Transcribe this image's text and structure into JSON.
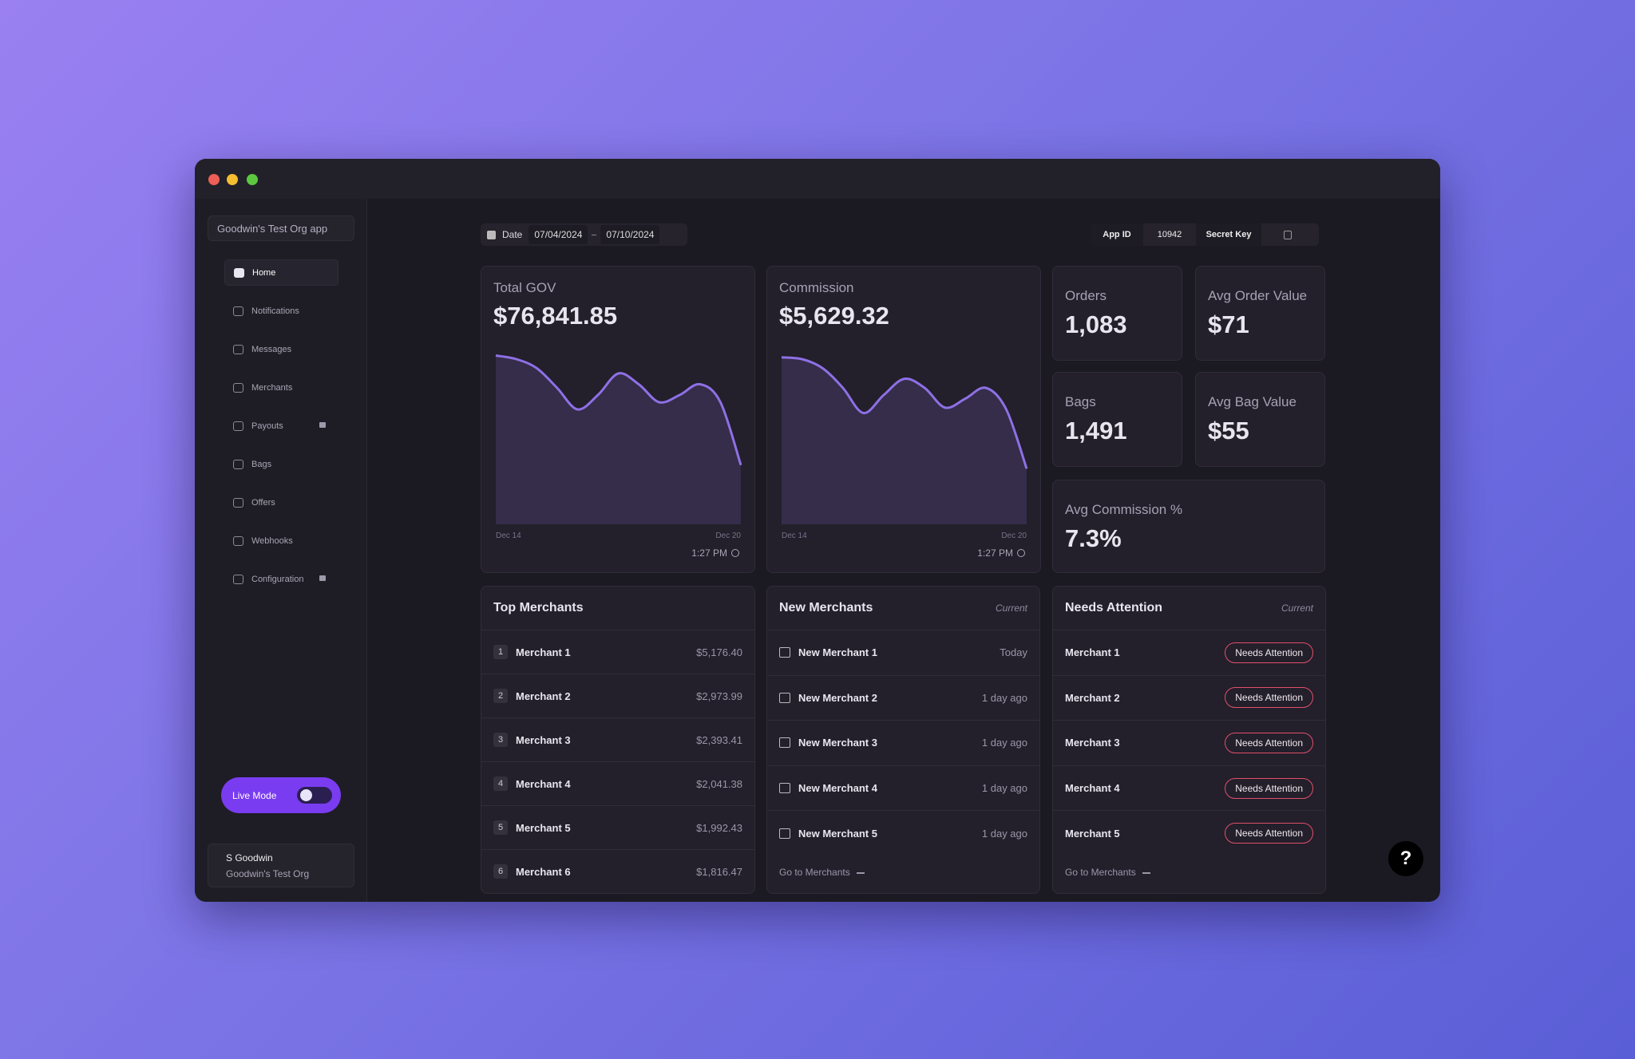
{
  "sidebar": {
    "org_app": "Goodwin's Test Org app",
    "nav": [
      {
        "label": "Home",
        "active": true,
        "locked": false
      },
      {
        "label": "Notifications",
        "active": false,
        "locked": false
      },
      {
        "label": "Messages",
        "active": false,
        "locked": false
      },
      {
        "label": "Merchants",
        "active": false,
        "locked": false
      },
      {
        "label": "Payouts",
        "active": false,
        "locked": true
      },
      {
        "label": "Bags",
        "active": false,
        "locked": false
      },
      {
        "label": "Offers",
        "active": false,
        "locked": false
      },
      {
        "label": "Webhooks",
        "active": false,
        "locked": false
      },
      {
        "label": "Configuration",
        "active": false,
        "locked": true
      }
    ],
    "live_mode": {
      "label": "Live Mode",
      "on": false
    },
    "user": {
      "name": "S Goodwin",
      "org": "Goodwin's Test Org"
    }
  },
  "toolbar": {
    "date_label": "Date",
    "start": "07/04/2024",
    "end": "07/10/2024",
    "app_id_label": "App ID",
    "app_id": "10942",
    "secret_key_label": "Secret Key"
  },
  "charts": [
    {
      "title": "Total GOV",
      "value": "$76,841.85",
      "x_start": "Dec 14",
      "x_end": "Dec 20",
      "time": "1:27 PM",
      "trend": [
        94,
        92,
        87,
        76,
        64,
        72,
        84,
        78,
        68,
        72,
        78,
        68,
        33
      ]
    },
    {
      "title": "Commission",
      "value": "$5,629.32",
      "x_start": "Dec 14",
      "x_end": "Dec 20",
      "time": "1:27 PM",
      "trend": [
        93,
        92,
        87,
        76,
        62,
        72,
        81,
        76,
        65,
        70,
        76,
        64,
        31
      ]
    }
  ],
  "stats": [
    {
      "label": "Orders",
      "value": "1,083"
    },
    {
      "label": "Avg Order Value",
      "value": "$71"
    },
    {
      "label": "Bags",
      "value": "1,491"
    },
    {
      "label": "Avg Bag Value",
      "value": "$55"
    },
    {
      "label": "Avg Commission %",
      "value": "7.3%"
    }
  ],
  "top_merchants": {
    "title": "Top Merchants",
    "rows": [
      {
        "rank": 1,
        "name": "Merchant 1",
        "amount": "$5,176.40"
      },
      {
        "rank": 2,
        "name": "Merchant 2",
        "amount": "$2,973.99"
      },
      {
        "rank": 3,
        "name": "Merchant 3",
        "amount": "$2,393.41"
      },
      {
        "rank": 4,
        "name": "Merchant 4",
        "amount": "$2,041.38"
      },
      {
        "rank": 5,
        "name": "Merchant 5",
        "amount": "$1,992.43"
      },
      {
        "rank": 6,
        "name": "Merchant 6",
        "amount": "$1,816.47"
      }
    ]
  },
  "new_merchants": {
    "title": "New Merchants",
    "tag": "Current",
    "rows": [
      {
        "name": "New Merchant 1",
        "when": "Today"
      },
      {
        "name": "New Merchant 2",
        "when": "1 day ago"
      },
      {
        "name": "New Merchant 3",
        "when": "1 day ago"
      },
      {
        "name": "New Merchant 4",
        "when": "1 day ago"
      },
      {
        "name": "New Merchant 5",
        "when": "1 day ago"
      }
    ],
    "link": "Go to Merchants"
  },
  "needs_attention": {
    "title": "Needs Attention",
    "tag": "Current",
    "rows": [
      {
        "name": "Merchant 1",
        "status": "Needs Attention"
      },
      {
        "name": "Merchant 2",
        "status": "Needs Attention"
      },
      {
        "name": "Merchant 3",
        "status": "Needs Attention"
      },
      {
        "name": "Merchant 4",
        "status": "Needs Attention"
      },
      {
        "name": "Merchant 5",
        "status": "Needs Attention"
      }
    ],
    "link": "Go to Merchants"
  },
  "help": "?"
}
